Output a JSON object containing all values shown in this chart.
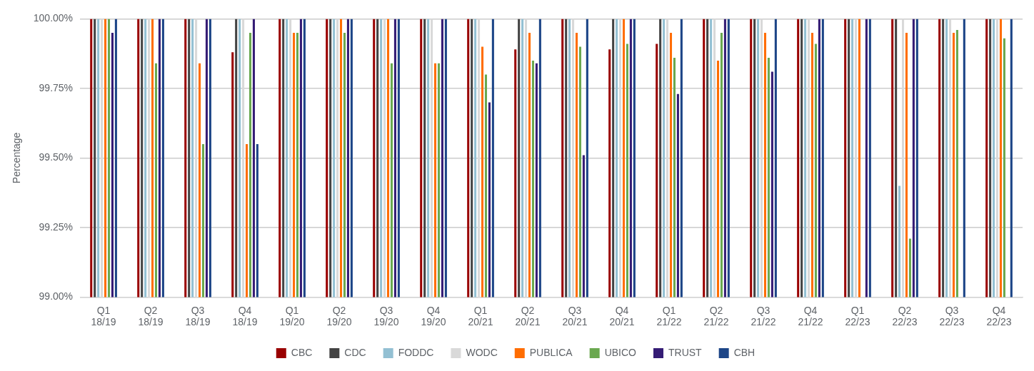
{
  "chart_data": {
    "type": "bar",
    "ylabel": "Percentage",
    "categories": [
      "Q1 18/19",
      "Q2 18/19",
      "Q3 18/19",
      "Q4 18/19",
      "Q1 19/20",
      "Q2 19/20",
      "Q3 19/20",
      "Q4 19/20",
      "Q1 20/21",
      "Q2 20/21",
      "Q3 20/21",
      "Q4 20/21",
      "Q1 21/22",
      "Q2 21/22",
      "Q3 21/22",
      "Q4 21/22",
      "Q1 22/23",
      "Q2 22/23",
      "Q3 22/23",
      "Q4 22/23"
    ],
    "series": [
      {
        "name": "CBC",
        "color": "#990000",
        "values": [
          100,
          100,
          100,
          99.88,
          100,
          100,
          100,
          100,
          100,
          99.89,
          100,
          99.89,
          99.91,
          100,
          100,
          100,
          100,
          100,
          100,
          100
        ]
      },
      {
        "name": "CDC",
        "color": "#434343",
        "values": [
          100,
          100,
          100,
          100,
          100,
          100,
          100,
          100,
          100,
          100,
          100,
          100,
          100,
          100,
          100,
          100,
          100,
          100,
          100,
          100
        ]
      },
      {
        "name": "FODDC",
        "color": "#93c0d3",
        "values": [
          100,
          100,
          100,
          100,
          100,
          100,
          100,
          100,
          100,
          100,
          100,
          100,
          100,
          100,
          100,
          100,
          100,
          99.4,
          100,
          100
        ]
      },
      {
        "name": "WODC",
        "color": "#d9d9d9",
        "values": [
          100,
          100,
          100,
          100,
          100,
          100,
          100,
          100,
          100,
          100,
          100,
          100,
          100,
          100,
          100,
          100,
          100,
          100,
          100,
          100
        ]
      },
      {
        "name": "PUBLICA",
        "color": "#ff6d01",
        "values": [
          100,
          100,
          99.84,
          99.55,
          99.95,
          100,
          100,
          99.84,
          99.9,
          99.95,
          99.95,
          100,
          99.95,
          99.85,
          99.95,
          99.95,
          100,
          99.95,
          99.95,
          100
        ]
      },
      {
        "name": "UBICO",
        "color": "#6aa84f",
        "values": [
          100,
          99.84,
          99.55,
          99.95,
          99.95,
          99.95,
          99.84,
          99.84,
          99.8,
          99.85,
          99.9,
          99.91,
          99.86,
          99.95,
          99.86,
          99.91,
          null,
          99.21,
          99.96,
          99.93
        ]
      },
      {
        "name": "TRUST",
        "color": "#351c75",
        "values": [
          99.95,
          100,
          100,
          100,
          100,
          100,
          100,
          100,
          99.7,
          99.84,
          99.51,
          100,
          99.73,
          100,
          99.81,
          100,
          100,
          100,
          null,
          null
        ]
      },
      {
        "name": "CBH",
        "color": "#1c4587",
        "values": [
          100,
          100,
          100,
          99.55,
          100,
          100,
          100,
          100,
          100,
          100,
          100,
          100,
          100,
          100,
          100,
          100,
          100,
          100,
          100,
          100
        ]
      }
    ],
    "ylim": [
      99,
      100
    ],
    "yticks": [
      {
        "value": 99,
        "label": "99.00%"
      },
      {
        "value": 99.25,
        "label": "99.25%"
      },
      {
        "value": 99.5,
        "label": "99.50%"
      },
      {
        "value": 99.75,
        "label": "99.75%"
      },
      {
        "value": 100,
        "label": "100.00%"
      }
    ],
    "grid": "y",
    "legend": "bottom"
  }
}
